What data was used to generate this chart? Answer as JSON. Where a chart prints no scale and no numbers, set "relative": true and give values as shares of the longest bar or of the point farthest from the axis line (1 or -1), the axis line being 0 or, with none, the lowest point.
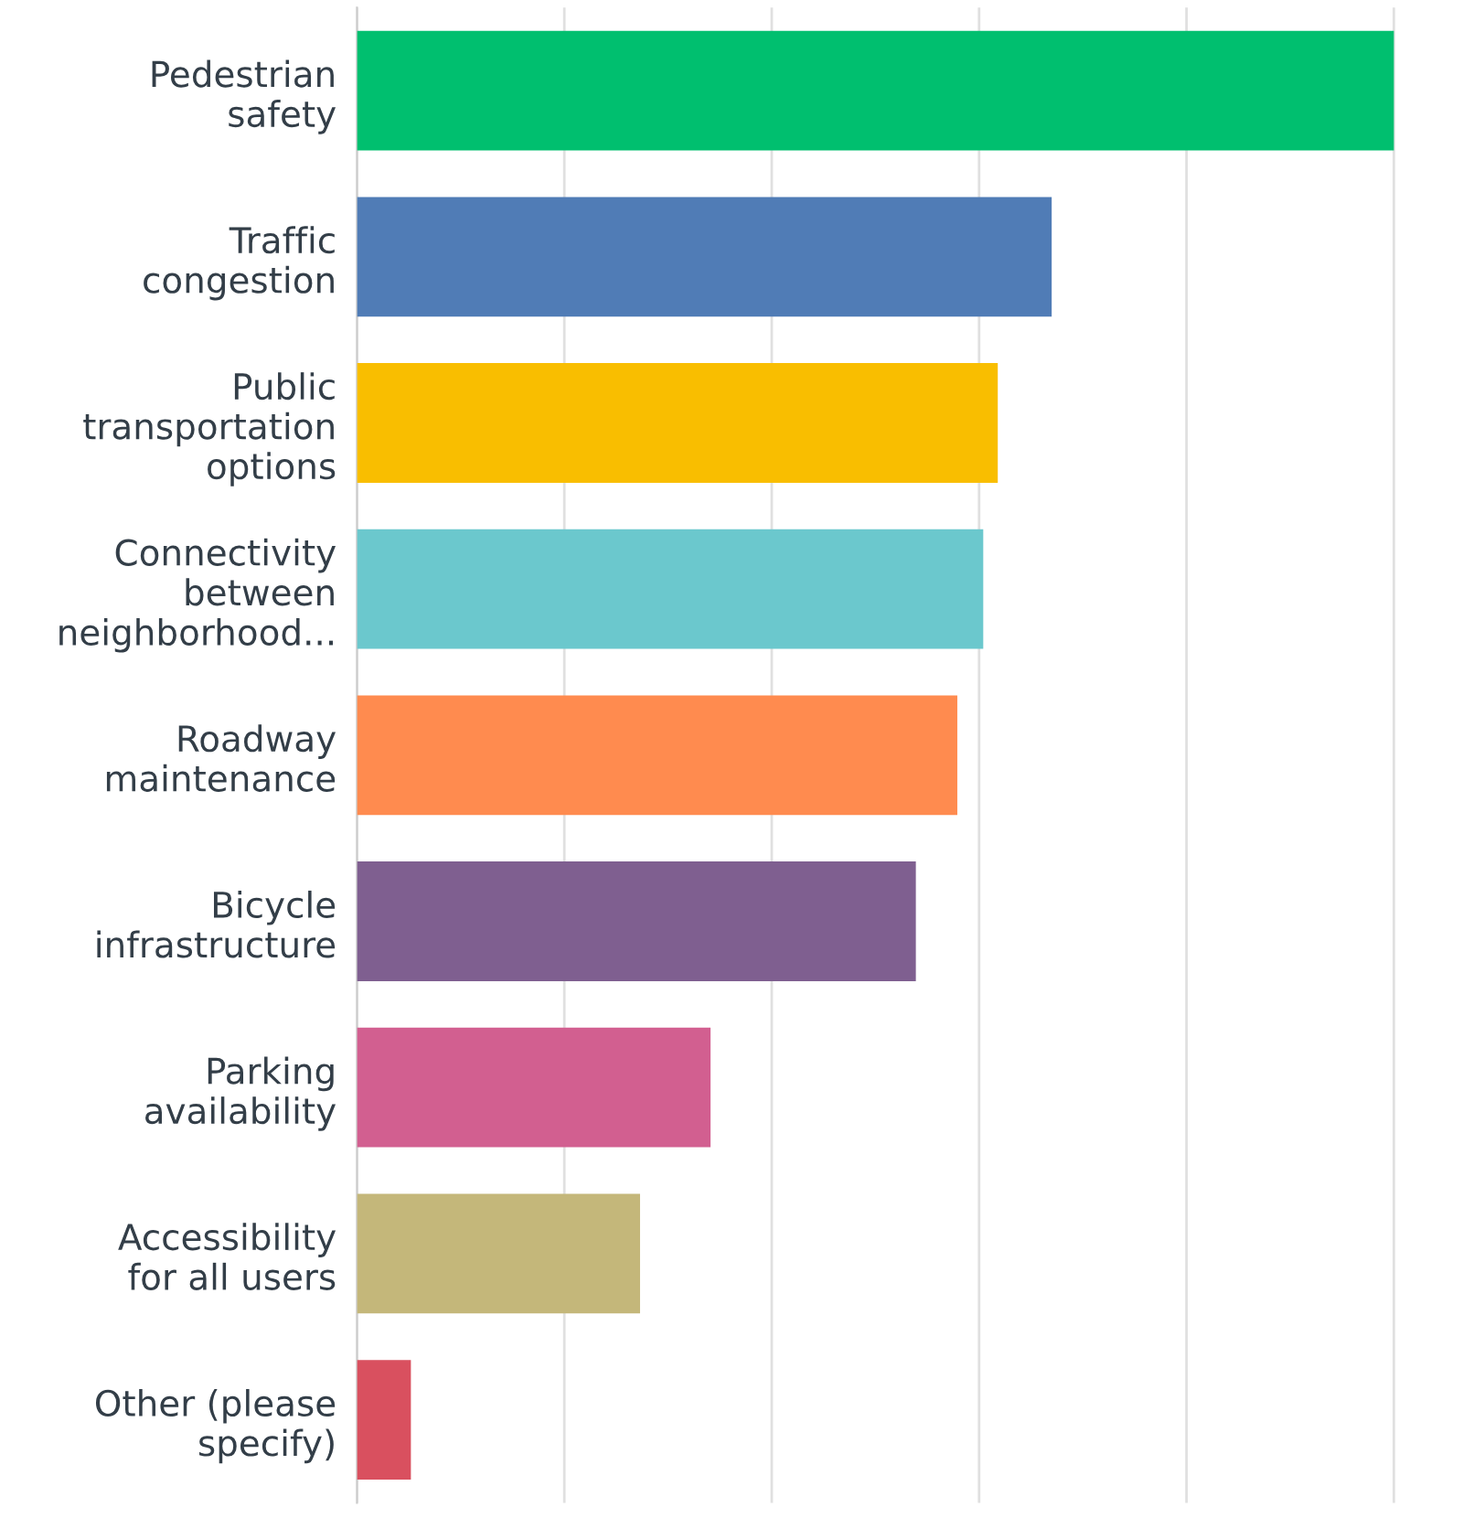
{
  "chart_data": {
    "type": "bar",
    "orientation": "horizontal",
    "relative": true,
    "grid": "x",
    "categories": [
      "Pedestrian\nsafety",
      "Traffic\ncongestion",
      "Public\ntransportation\noptions",
      "Connectivity\nbetween\nneighborhood...",
      "Roadway\nmaintenance",
      "Bicycle\ninfrastructure",
      "Parking\navailability",
      "Accessibility\nfor all users",
      "Other (please\nspecify)"
    ],
    "values": [
      1,
      0.67,
      0.618,
      0.604,
      0.579,
      0.539,
      0.341,
      0.273,
      0.052
    ],
    "colors": [
      "#00bf6f",
      "#507cb6",
      "#f9be00",
      "#6bc8cd",
      "#ff8b4f",
      "#7f5f90",
      "#d25f90",
      "#c4b77a",
      "#d9505f"
    ]
  }
}
